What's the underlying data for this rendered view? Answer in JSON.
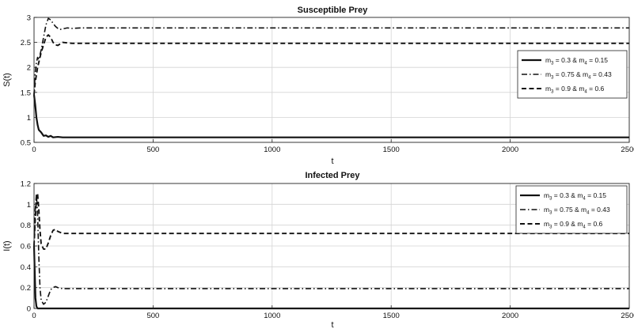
{
  "chart_data": [
    {
      "type": "line",
      "title": "Susceptible Prey",
      "xlabel": "t",
      "ylabel": "S(t)",
      "xlim": [
        0,
        2500
      ],
      "ylim": [
        0.5,
        3
      ],
      "xticks": [
        0,
        500,
        1000,
        1500,
        2000,
        2500
      ],
      "yticks": [
        0.5,
        1,
        1.5,
        2,
        2.5,
        3
      ],
      "grid": true,
      "legend_position": "right",
      "series": [
        {
          "name": "m3 = 0.3 & m4 = 0.15",
          "legend": {
            "a": "m",
            "sub1": "3",
            "b": " = 0.3 & m",
            "sub2": "4",
            "c": " = 0.15"
          },
          "style": "solid",
          "x": [
            0,
            5,
            10,
            15,
            20,
            30,
            40,
            50,
            60,
            70,
            80,
            100,
            120,
            150,
            200,
            300,
            400,
            2500
          ],
          "y": [
            1.45,
            1.25,
            1.0,
            0.85,
            0.75,
            0.7,
            0.63,
            0.64,
            0.61,
            0.63,
            0.6,
            0.61,
            0.6,
            0.6,
            0.6,
            0.6,
            0.6,
            0.6
          ]
        },
        {
          "name": "m3 = 0.75 & m4 = 0.43",
          "legend": {
            "a": "m",
            "sub1": "3",
            "b": " = 0.75 & m",
            "sub2": "4",
            "c": " = 0.43"
          },
          "style": "dashdot",
          "x": [
            0,
            5,
            10,
            15,
            20,
            30,
            40,
            50,
            60,
            70,
            80,
            90,
            100,
            110,
            120,
            140,
            160,
            200,
            300,
            2500
          ],
          "y": [
            1.45,
            1.9,
            2.1,
            2.2,
            2.15,
            2.35,
            2.6,
            2.85,
            2.98,
            2.95,
            2.88,
            2.82,
            2.78,
            2.76,
            2.77,
            2.79,
            2.78,
            2.79,
            2.79,
            2.79
          ]
        },
        {
          "name": "m3 = 0.9 & m4 = 0.6",
          "legend": {
            "a": "m",
            "sub1": "3",
            "b": " = 0.9 & m",
            "sub2": "4",
            "c": " = 0.6"
          },
          "style": "dashed",
          "x": [
            0,
            5,
            10,
            15,
            20,
            30,
            40,
            50,
            60,
            70,
            80,
            90,
            100,
            110,
            120,
            140,
            160,
            200,
            300,
            2500
          ],
          "y": [
            1.45,
            1.7,
            1.85,
            2.0,
            2.1,
            2.3,
            2.45,
            2.6,
            2.65,
            2.6,
            2.5,
            2.45,
            2.44,
            2.47,
            2.5,
            2.49,
            2.48,
            2.48,
            2.48,
            2.48
          ]
        }
      ]
    },
    {
      "type": "line",
      "title": "Infected Prey",
      "xlabel": "t",
      "ylabel": "I(t)",
      "xlim": [
        0,
        2500
      ],
      "ylim": [
        0,
        1.2
      ],
      "xticks": [
        0,
        500,
        1000,
        1500,
        2000,
        2500
      ],
      "yticks": [
        0,
        0.2,
        0.4,
        0.6,
        0.8,
        1,
        1.2
      ],
      "grid": true,
      "legend_position": "top-right",
      "series": [
        {
          "name": "m3 = 0.3 & m4 = 0.15",
          "legend": {
            "a": "m",
            "sub1": "3",
            "b": " = 0.3 & m",
            "sub2": "4",
            "c": " = 0.15"
          },
          "style": "solid",
          "x": [
            0,
            3,
            6,
            10,
            15,
            20,
            25,
            30,
            2500
          ],
          "y": [
            0.6,
            0.35,
            0.1,
            0.02,
            0.0,
            0.0,
            0.0,
            0.0,
            0.0
          ]
        },
        {
          "name": "m3 = 0.75 & m4 = 0.43",
          "legend": {
            "a": "m",
            "sub1": "3",
            "b": " = 0.75 & m",
            "sub2": "4",
            "c": " = 0.43"
          },
          "style": "dashdot",
          "x": [
            0,
            5,
            10,
            15,
            20,
            25,
            30,
            40,
            50,
            60,
            70,
            80,
            90,
            100,
            120,
            150,
            200,
            300,
            2500
          ],
          "y": [
            0.6,
            0.95,
            1.1,
            0.9,
            0.5,
            0.2,
            0.08,
            0.04,
            0.06,
            0.12,
            0.18,
            0.2,
            0.21,
            0.2,
            0.19,
            0.19,
            0.19,
            0.19,
            0.19
          ]
        },
        {
          "name": "m3 = 0.9 & m4 = 0.6",
          "legend": {
            "a": "m",
            "sub1": "3",
            "b": " = 0.9 & m",
            "sub2": "4",
            "c": " = 0.6"
          },
          "style": "dashed",
          "x": [
            0,
            5,
            10,
            15,
            20,
            25,
            30,
            40,
            50,
            60,
            70,
            80,
            90,
            100,
            120,
            150,
            200,
            300,
            2500
          ],
          "y": [
            0.6,
            0.85,
            1.05,
            1.1,
            0.95,
            0.75,
            0.62,
            0.57,
            0.57,
            0.63,
            0.7,
            0.75,
            0.76,
            0.74,
            0.72,
            0.72,
            0.72,
            0.72,
            0.72
          ]
        }
      ]
    }
  ]
}
